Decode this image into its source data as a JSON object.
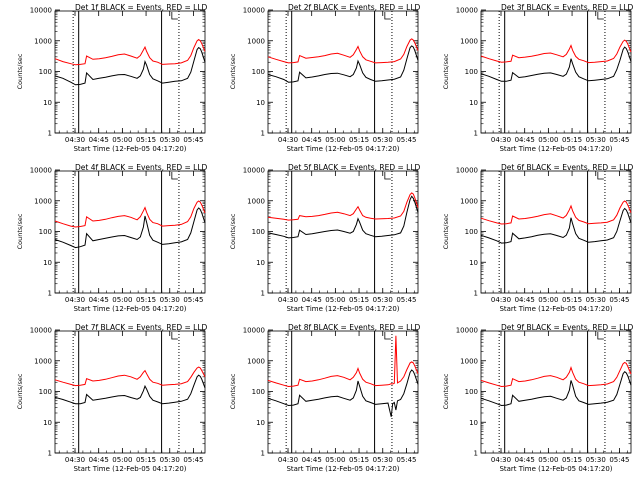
{
  "figure": {
    "background": "#ffffff"
  },
  "colors": {
    "events": "#000000",
    "lld": "#ff0000",
    "axes": "#000000"
  },
  "shared": {
    "ylabel": "Counts/sec",
    "xlabel": "Start Time (12-Feb-05 04:17:20)",
    "ylim": [
      1,
      10000
    ],
    "y_ticks": [
      1,
      10,
      100,
      1000,
      10000
    ],
    "x_range_minutes": [
      0,
      95
    ],
    "x_ticks": [
      {
        "minute": 12.67,
        "label": "04:30"
      },
      {
        "minute": 27.67,
        "label": "04:45"
      },
      {
        "minute": 42.67,
        "label": "05:00"
      },
      {
        "minute": 57.67,
        "label": "05:15"
      },
      {
        "minute": 72.67,
        "label": "05:30"
      },
      {
        "minute": 87.67,
        "label": "05:45"
      }
    ],
    "solid_vlines_minutes": [
      15.0,
      67.5
    ],
    "dotted_vlines_minutes": [
      11.5,
      78.5
    ]
  },
  "chart_data": [
    {
      "type": "line",
      "title": "Det 1f BLACK = Events, RED = LLD",
      "xlabel": "Start Time (12-Feb-05 04:17:20)",
      "ylabel": "Counts/sec",
      "ylim": [
        1,
        10000
      ],
      "yscale": "log",
      "x": [
        0,
        5,
        10,
        13,
        16,
        19,
        20,
        24,
        28,
        32,
        36,
        40,
        44,
        48,
        52,
        54,
        56,
        57,
        58,
        60,
        62,
        65,
        68,
        72,
        76,
        80,
        84,
        86,
        88,
        90,
        91,
        92,
        93,
        95
      ],
      "series": [
        {
          "name": "Events",
          "values": [
            72,
            60,
            45,
            37,
            38,
            42,
            90,
            55,
            60,
            65,
            72,
            78,
            80,
            70,
            60,
            72,
            120,
            210,
            160,
            80,
            58,
            50,
            42,
            45,
            48,
            50,
            60,
            95,
            220,
            520,
            600,
            550,
            420,
            200
          ]
        },
        {
          "name": "LLD",
          "values": [
            260,
            210,
            180,
            165,
            170,
            180,
            320,
            250,
            260,
            280,
            310,
            350,
            370,
            320,
            270,
            330,
            500,
            620,
            450,
            280,
            220,
            200,
            170,
            175,
            180,
            190,
            230,
            330,
            600,
            1000,
            1100,
            1000,
            800,
            450
          ]
        }
      ]
    },
    {
      "type": "line",
      "title": "Det 2f BLACK = Events, RED = LLD",
      "xlabel": "Start Time (12-Feb-05 04:17:20)",
      "ylabel": "Counts/sec",
      "ylim": [
        1,
        10000
      ],
      "yscale": "log",
      "x": [
        0,
        5,
        10,
        13,
        16,
        19,
        20,
        24,
        28,
        32,
        36,
        40,
        44,
        48,
        52,
        54,
        56,
        57,
        58,
        60,
        62,
        65,
        68,
        72,
        76,
        80,
        84,
        86,
        88,
        90,
        91,
        92,
        93,
        95
      ],
      "series": [
        {
          "name": "Events",
          "values": [
            80,
            68,
            55,
            45,
            46,
            50,
            95,
            62,
            66,
            72,
            80,
            86,
            88,
            78,
            68,
            80,
            130,
            220,
            170,
            90,
            65,
            55,
            48,
            50,
            53,
            56,
            66,
            110,
            260,
            600,
            680,
            620,
            480,
            230
          ]
        },
        {
          "name": "LLD",
          "values": [
            300,
            250,
            210,
            190,
            195,
            205,
            330,
            270,
            285,
            300,
            330,
            370,
            390,
            340,
            290,
            350,
            520,
            650,
            470,
            300,
            240,
            215,
            190,
            195,
            200,
            210,
            255,
            360,
            650,
            1050,
            1150,
            1050,
            850,
            480
          ]
        }
      ]
    },
    {
      "type": "line",
      "title": "Det 3f BLACK = Events, RED = LLD",
      "xlabel": "Start Time (12-Feb-05 04:17:20)",
      "ylabel": "Counts/sec",
      "ylim": [
        1,
        10000
      ],
      "yscale": "log",
      "x": [
        0,
        5,
        10,
        13,
        16,
        19,
        20,
        24,
        28,
        32,
        36,
        40,
        44,
        48,
        52,
        54,
        56,
        57,
        58,
        60,
        62,
        65,
        68,
        72,
        76,
        80,
        84,
        86,
        88,
        90,
        91,
        92,
        93,
        95
      ],
      "series": [
        {
          "name": "Events",
          "values": [
            85,
            70,
            55,
            48,
            48,
            52,
            92,
            64,
            68,
            74,
            82,
            88,
            90,
            80,
            70,
            82,
            140,
            260,
            180,
            95,
            68,
            58,
            50,
            52,
            55,
            58,
            70,
            115,
            230,
            520,
            620,
            560,
            430,
            210
          ]
        },
        {
          "name": "LLD",
          "values": [
            320,
            260,
            220,
            200,
            205,
            215,
            340,
            280,
            295,
            315,
            345,
            385,
            400,
            350,
            300,
            360,
            540,
            700,
            490,
            310,
            250,
            225,
            195,
            200,
            210,
            220,
            265,
            370,
            620,
            950,
            1050,
            960,
            780,
            430
          ]
        }
      ]
    },
    {
      "type": "line",
      "title": "Det 4f BLACK = Events, RED = LLD",
      "xlabel": "Start Time (12-Feb-05 04:17:20)",
      "ylabel": "Counts/sec",
      "ylim": [
        1,
        10000
      ],
      "yscale": "log",
      "x": [
        0,
        5,
        10,
        13,
        16,
        19,
        20,
        24,
        28,
        32,
        36,
        40,
        44,
        48,
        52,
        54,
        56,
        57,
        58,
        60,
        62,
        65,
        68,
        72,
        76,
        80,
        84,
        86,
        88,
        90,
        91,
        92,
        93,
        95
      ],
      "series": [
        {
          "name": "Events",
          "values": [
            55,
            45,
            35,
            30,
            32,
            36,
            85,
            50,
            55,
            60,
            66,
            72,
            74,
            64,
            55,
            66,
            140,
            320,
            200,
            75,
            52,
            45,
            38,
            40,
            43,
            46,
            55,
            90,
            210,
            500,
            580,
            520,
            400,
            190
          ]
        },
        {
          "name": "LLD",
          "values": [
            220,
            180,
            150,
            140,
            145,
            155,
            300,
            220,
            230,
            250,
            280,
            310,
            330,
            290,
            240,
            300,
            470,
            600,
            420,
            250,
            195,
            180,
            150,
            155,
            160,
            170,
            210,
            300,
            560,
            900,
            980,
            900,
            720,
            400
          ]
        }
      ]
    },
    {
      "type": "line",
      "title": "Det 5f BLACK = Events, RED = LLD",
      "xlabel": "Start Time (12-Feb-05 04:17:20)",
      "ylabel": "Counts/sec",
      "ylim": [
        1,
        10000
      ],
      "yscale": "log",
      "x": [
        0,
        5,
        10,
        13,
        16,
        19,
        20,
        24,
        28,
        32,
        36,
        40,
        44,
        48,
        52,
        54,
        56,
        57,
        58,
        60,
        62,
        65,
        68,
        72,
        76,
        80,
        84,
        86,
        88,
        90,
        91,
        92,
        93,
        95
      ],
      "series": [
        {
          "name": "Events",
          "values": [
            90,
            80,
            70,
            62,
            64,
            68,
            110,
            80,
            85,
            92,
            100,
            108,
            112,
            100,
            88,
            100,
            170,
            260,
            200,
            110,
            85,
            75,
            68,
            70,
            74,
            78,
            90,
            150,
            420,
            1100,
            1400,
            1200,
            900,
            420
          ]
        },
        {
          "name": "LLD",
          "values": [
            290,
            270,
            250,
            235,
            240,
            250,
            330,
            300,
            310,
            330,
            360,
            400,
            420,
            380,
            330,
            380,
            540,
            640,
            500,
            330,
            290,
            270,
            255,
            260,
            265,
            275,
            320,
            450,
            900,
            1600,
            1800,
            1650,
            1250,
            600
          ]
        }
      ]
    },
    {
      "type": "line",
      "title": "Det 6f BLACK = Events, RED = LLD",
      "xlabel": "Start Time (12-Feb-05 04:17:20)",
      "ylabel": "Counts/sec",
      "ylim": [
        1,
        10000
      ],
      "yscale": "log",
      "x": [
        0,
        5,
        10,
        13,
        16,
        19,
        20,
        24,
        28,
        32,
        36,
        40,
        44,
        48,
        52,
        54,
        56,
        57,
        58,
        60,
        62,
        65,
        68,
        72,
        76,
        80,
        84,
        86,
        88,
        90,
        91,
        92,
        93,
        95
      ],
      "series": [
        {
          "name": "Events",
          "values": [
            75,
            62,
            50,
            42,
            43,
            47,
            88,
            58,
            62,
            68,
            75,
            82,
            84,
            74,
            64,
            76,
            130,
            280,
            180,
            85,
            60,
            52,
            45,
            47,
            50,
            53,
            63,
            100,
            220,
            480,
            560,
            500,
            390,
            190
          ]
        },
        {
          "name": "LLD",
          "values": [
            270,
            225,
            190,
            175,
            180,
            190,
            320,
            255,
            265,
            285,
            315,
            355,
            375,
            325,
            275,
            335,
            510,
            680,
            470,
            290,
            230,
            205,
            180,
            185,
            190,
            200,
            240,
            340,
            580,
            900,
            980,
            900,
            720,
            410
          ]
        }
      ]
    },
    {
      "type": "line",
      "title": "Det 7f BLACK = Events, RED = LLD",
      "xlabel": "Start Time (12-Feb-05 04:17:20)",
      "ylabel": "Counts/sec",
      "ylim": [
        1,
        10000
      ],
      "yscale": "log",
      "x": [
        0,
        5,
        10,
        13,
        16,
        19,
        20,
        24,
        28,
        32,
        36,
        40,
        44,
        48,
        52,
        54,
        56,
        57,
        58,
        60,
        62,
        65,
        68,
        72,
        76,
        80,
        84,
        86,
        88,
        90,
        91,
        92,
        93,
        95
      ],
      "series": [
        {
          "name": "Events",
          "values": [
            65,
            55,
            45,
            40,
            40,
            44,
            80,
            52,
            56,
            60,
            66,
            72,
            74,
            64,
            56,
            64,
            105,
            150,
            120,
            70,
            52,
            46,
            40,
            42,
            45,
            48,
            56,
            85,
            160,
            300,
            340,
            310,
            250,
            130
          ]
        },
        {
          "name": "LLD",
          "values": [
            240,
            200,
            170,
            155,
            160,
            170,
            260,
            220,
            230,
            250,
            280,
            320,
            340,
            300,
            250,
            300,
            420,
            480,
            380,
            250,
            200,
            185,
            160,
            165,
            170,
            180,
            210,
            290,
            420,
            580,
            620,
            580,
            480,
            300
          ]
        }
      ]
    },
    {
      "type": "line",
      "title": "Det 8f BLACK = Events, RED = LLD",
      "xlabel": "Start Time (12-Feb-05 04:17:20)",
      "ylabel": "Counts/sec",
      "ylim": [
        1,
        10000
      ],
      "yscale": "log",
      "x": [
        0,
        5,
        10,
        13,
        16,
        19,
        20,
        24,
        28,
        32,
        36,
        40,
        44,
        48,
        52,
        54,
        56,
        57,
        58,
        60,
        62,
        65,
        68,
        72,
        76,
        77,
        78,
        79,
        80,
        81,
        82,
        84,
        86,
        88,
        90,
        91,
        92,
        93,
        95
      ],
      "series": [
        {
          "name": "Events",
          "values": [
            60,
            50,
            40,
            35,
            36,
            40,
            75,
            48,
            52,
            56,
            62,
            68,
            70,
            60,
            52,
            62,
            110,
            220,
            150,
            70,
            50,
            44,
            38,
            40,
            42,
            25,
            15,
            40,
            44,
            25,
            50,
            55,
            85,
            180,
            420,
            500,
            450,
            350,
            170
          ]
        },
        {
          "name": "LLD",
          "values": [
            230,
            190,
            160,
            145,
            150,
            160,
            250,
            210,
            220,
            240,
            270,
            310,
            330,
            290,
            240,
            290,
            410,
            560,
            400,
            250,
            200,
            180,
            155,
            160,
            165,
            170,
            180,
            175,
            185,
            6500,
            190,
            220,
            300,
            520,
            850,
            920,
            850,
            680,
            380
          ]
        }
      ]
    },
    {
      "type": "line",
      "title": "Det 9f BLACK = Events, RED = LLD",
      "xlabel": "Start Time (12-Feb-05 04:17:20)",
      "ylabel": "Counts/sec",
      "ylim": [
        1,
        10000
      ],
      "yscale": "log",
      "x": [
        0,
        5,
        10,
        13,
        16,
        19,
        20,
        24,
        28,
        32,
        36,
        40,
        44,
        48,
        52,
        54,
        56,
        57,
        58,
        60,
        62,
        65,
        68,
        72,
        76,
        80,
        84,
        86,
        88,
        90,
        91,
        92,
        93,
        95
      ],
      "series": [
        {
          "name": "Events",
          "values": [
            60,
            50,
            40,
            35,
            36,
            40,
            75,
            48,
            52,
            56,
            62,
            68,
            70,
            60,
            52,
            62,
            110,
            230,
            160,
            70,
            50,
            44,
            38,
            40,
            42,
            45,
            52,
            80,
            170,
            380,
            440,
            400,
            320,
            160
          ]
        },
        {
          "name": "LLD",
          "values": [
            230,
            190,
            160,
            145,
            150,
            160,
            260,
            210,
            220,
            240,
            270,
            310,
            330,
            290,
            240,
            290,
            420,
            600,
            420,
            250,
            200,
            180,
            155,
            160,
            165,
            175,
            210,
            290,
            480,
            800,
            880,
            820,
            650,
            370
          ]
        }
      ]
    }
  ]
}
